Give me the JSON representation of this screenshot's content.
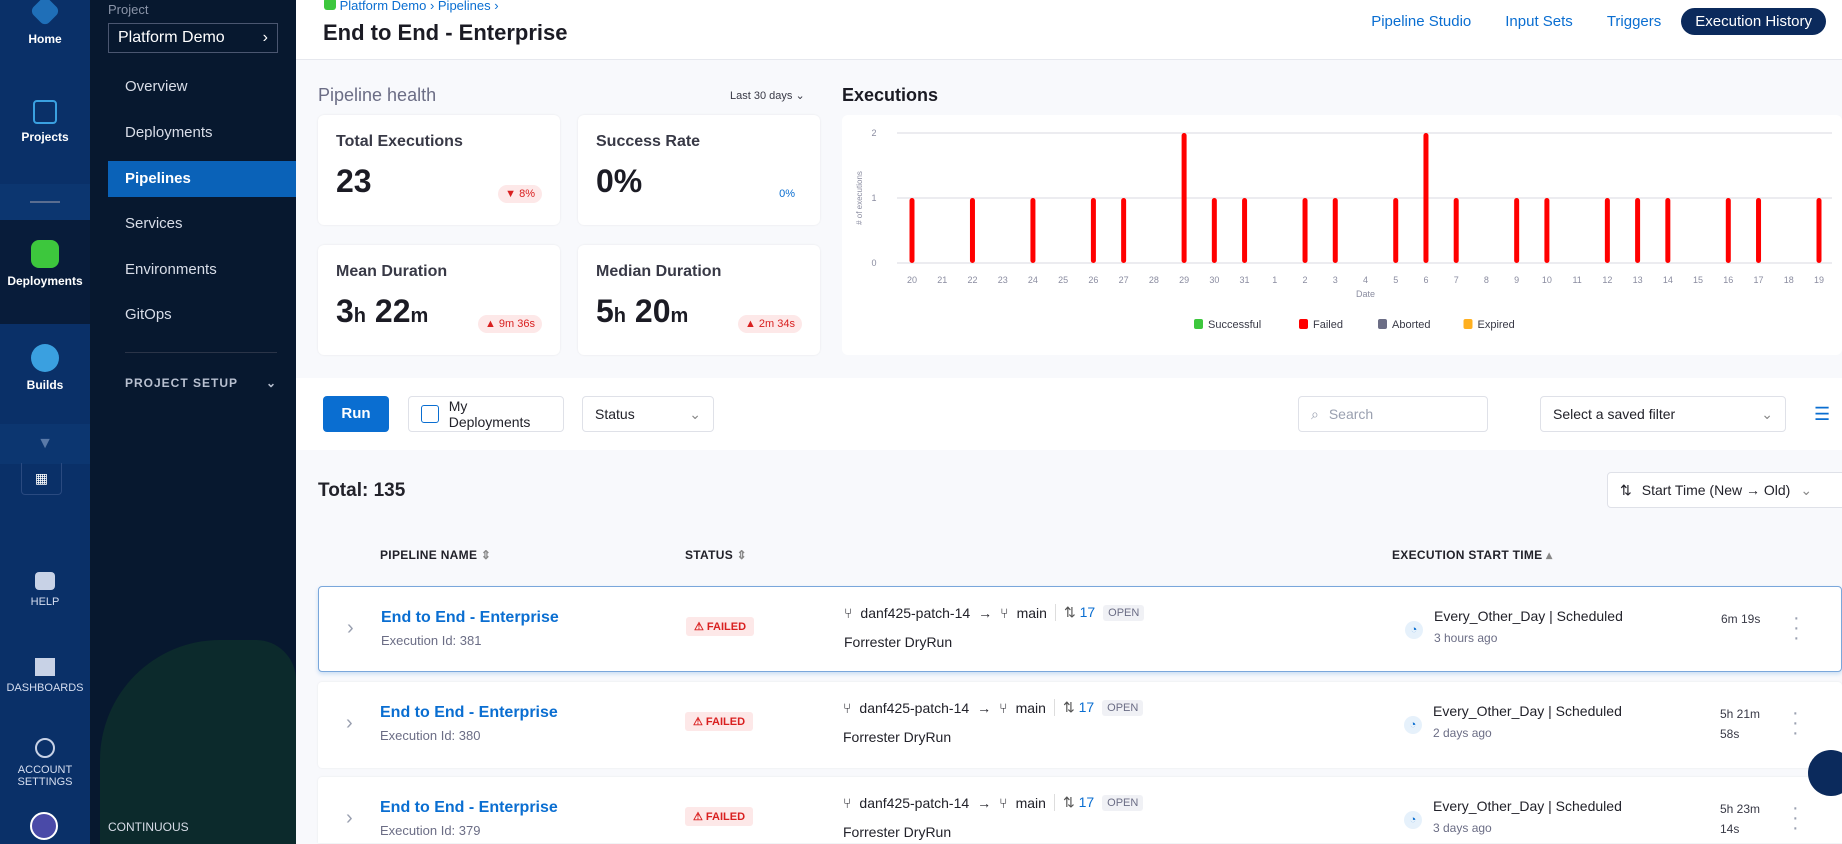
{
  "rail": {
    "items": [
      {
        "label": "Home"
      },
      {
        "label": "Projects"
      },
      {
        "label": "Deployments"
      },
      {
        "label": "Builds"
      }
    ],
    "bottom": [
      {
        "label": "HELP"
      },
      {
        "label": "DASHBOARDS"
      },
      {
        "label": "ACCOUNT SETTINGS"
      }
    ]
  },
  "sidebar": {
    "project_label": "Project",
    "project": "Platform Demo",
    "items": [
      {
        "label": "Overview"
      },
      {
        "label": "Deployments"
      },
      {
        "label": "Pipelines",
        "active": true
      },
      {
        "label": "Services"
      },
      {
        "label": "Environments"
      },
      {
        "label": "GitOps"
      }
    ],
    "setup": "PROJECT SETUP",
    "footer": "CONTINUOUS"
  },
  "header": {
    "breadcrumb": [
      "Platform Demo",
      "Pipelines"
    ],
    "title": "End to End - Enterprise",
    "tabs": [
      {
        "label": "Pipeline Studio"
      },
      {
        "label": "Input Sets"
      },
      {
        "label": "Triggers"
      },
      {
        "label": "Execution History",
        "active": true
      }
    ]
  },
  "health": {
    "title": "Pipeline health",
    "range": "Last 30 days",
    "cards": [
      {
        "label": "Total Executions",
        "value": "23",
        "unit": "",
        "value2": "",
        "unit2": "",
        "change": "▼ 8%",
        "trend": "down"
      },
      {
        "label": "Success Rate",
        "value": "0%",
        "unit": "",
        "value2": "",
        "unit2": "",
        "change": "0%",
        "trend": "neutral"
      },
      {
        "label": "Mean Duration",
        "value": "3",
        "unit": "h",
        "value2": " 22",
        "unit2": "m",
        "change": "▲ 9m 36s",
        "trend": "up"
      },
      {
        "label": "Median Duration",
        "value": "5",
        "unit": "h",
        "value2": " 20",
        "unit2": "m",
        "change": "▲ 2m 34s",
        "trend": "up"
      }
    ]
  },
  "chart_data": {
    "type": "bar",
    "title": "Executions",
    "xlabel": "Date",
    "ylabel": "# of executions",
    "ylim": [
      0,
      2
    ],
    "yticks": [
      0,
      1,
      2
    ],
    "grid": true,
    "legend_placement": "bottom",
    "categories": [
      "20",
      "21",
      "22",
      "23",
      "24",
      "25",
      "26",
      "27",
      "28",
      "29",
      "30",
      "31",
      "1",
      "2",
      "3",
      "4",
      "5",
      "6",
      "7",
      "8",
      "9",
      "10",
      "11",
      "12",
      "13",
      "14",
      "15",
      "16",
      "17",
      "18",
      "19"
    ],
    "series": [
      {
        "name": "Successful",
        "color": "#3dc73d",
        "values": [
          0,
          0,
          0,
          0,
          0,
          0,
          0,
          0,
          0,
          0,
          0,
          0,
          0,
          0,
          0,
          0,
          0,
          0,
          0,
          0,
          0,
          0,
          0,
          0,
          0,
          0,
          0,
          0,
          0,
          0,
          0
        ]
      },
      {
        "name": "Failed",
        "color": "#ff0000",
        "values": [
          1,
          0,
          1,
          0,
          1,
          0,
          1,
          1,
          0,
          2,
          1,
          1,
          0,
          1,
          1,
          0,
          1,
          2,
          1,
          0,
          1,
          1,
          0,
          1,
          1,
          1,
          0,
          1,
          1,
          0,
          1
        ]
      },
      {
        "name": "Aborted",
        "color": "#6b6d85",
        "values": [
          0,
          0,
          0,
          0,
          0,
          0,
          0,
          0,
          0,
          0,
          0,
          0,
          0,
          0,
          0,
          0,
          0,
          0,
          0,
          0,
          0,
          0,
          0,
          0,
          0,
          0,
          0,
          0,
          0,
          0,
          0
        ]
      },
      {
        "name": "Expired",
        "color": "#ffb020",
        "values": [
          0,
          0,
          0,
          0,
          0,
          0,
          0,
          0,
          0,
          0,
          0,
          0,
          0,
          0,
          0,
          0,
          0,
          0,
          0,
          0,
          0,
          0,
          0,
          0,
          0,
          0,
          0,
          0,
          0,
          0,
          0
        ]
      }
    ]
  },
  "toolbar": {
    "run": "Run",
    "my_deployments": "My Deployments",
    "status": "Status",
    "search_placeholder": "Search",
    "saved_filter": "Select a saved filter"
  },
  "list": {
    "total": "Total: 135",
    "sort": "Start Time (New → Old)",
    "columns": [
      "PIPELINE NAME",
      "STATUS",
      "EXECUTION START TIME"
    ],
    "rows": [
      {
        "name": "End to End - Enterprise",
        "id": "Execution Id: 381",
        "status": "FAILED",
        "branch": "danf425-patch-14",
        "target": "main",
        "pr": "17",
        "pr_state": "OPEN",
        "desc": "Forrester DryRun",
        "trigger": "Every_Other_Day | Scheduled",
        "ago": "3 hours ago",
        "duration": "6m 19s"
      },
      {
        "name": "End to End - Enterprise",
        "id": "Execution Id: 380",
        "status": "FAILED",
        "branch": "danf425-patch-14",
        "target": "main",
        "pr": "17",
        "pr_state": "OPEN",
        "desc": "Forrester DryRun",
        "trigger": "Every_Other_Day | Scheduled",
        "ago": "2 days ago",
        "duration": "5h 21m 58s"
      },
      {
        "name": "End to End - Enterprise",
        "id": "Execution Id: 379",
        "status": "FAILED",
        "branch": "danf425-patch-14",
        "target": "main",
        "pr": "17",
        "pr_state": "OPEN",
        "desc": "Forrester DryRun",
        "trigger": "Every_Other_Day | Scheduled",
        "ago": "3 days ago",
        "duration": "5h 23m 14s"
      }
    ]
  }
}
